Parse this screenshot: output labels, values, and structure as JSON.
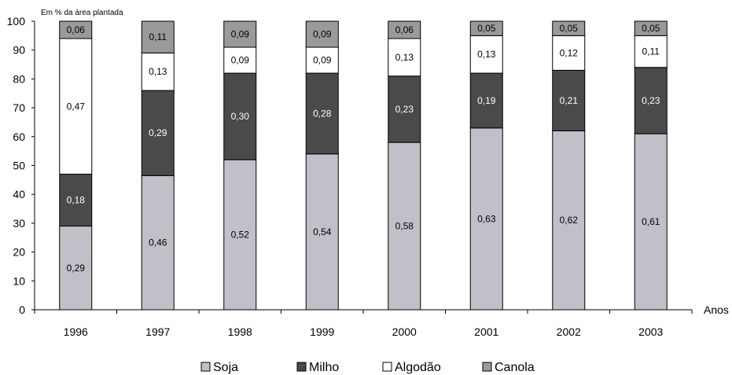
{
  "chart_data": {
    "type": "bar",
    "stacked": true,
    "y_unit_label": "Em %  da área plantada",
    "x_unit_label": "Anos",
    "ylim": [
      0,
      100
    ],
    "yticks": [
      "0",
      "10",
      "20",
      "30",
      "40",
      "50",
      "60",
      "70",
      "80",
      "90",
      "100"
    ],
    "categories": [
      "1996",
      "1997",
      "1998",
      "1999",
      "2000",
      "2001",
      "2002",
      "2003"
    ],
    "series": [
      {
        "name": "Soja",
        "color": "#c0c0c8",
        "values": [
          29,
          46.5,
          52,
          54,
          58,
          63,
          62,
          61
        ],
        "labels": [
          "0,29",
          "0,46",
          "0,52",
          "0,54",
          "0,58",
          "0,63",
          "0,62",
          "0,61"
        ]
      },
      {
        "name": "Milho",
        "color": "#4a4a4a",
        "values": [
          18,
          29.5,
          30,
          28,
          23,
          19,
          21,
          23
        ],
        "labels": [
          "0,18",
          "0,29",
          "0,30",
          "0,28",
          "0,23",
          "0,19",
          "0,21",
          "0,23"
        ]
      },
      {
        "name": "Algodão",
        "color": "#ffffff",
        "values": [
          47,
          13,
          9,
          9,
          13,
          13,
          12,
          11
        ],
        "labels": [
          "0,47",
          "0,13",
          "0,09",
          "0,09",
          "0,13",
          "0,13",
          "0,12",
          "0,11"
        ]
      },
      {
        "name": "Canola",
        "color": "#9a9a9a",
        "values": [
          6,
          11,
          9,
          9,
          6,
          5,
          5,
          5
        ],
        "labels": [
          "0,06",
          "0,11",
          "0,09",
          "0,09",
          "0,06",
          "0,05",
          "0,05",
          "0,05"
        ]
      }
    ],
    "legend_position": "bottom"
  }
}
